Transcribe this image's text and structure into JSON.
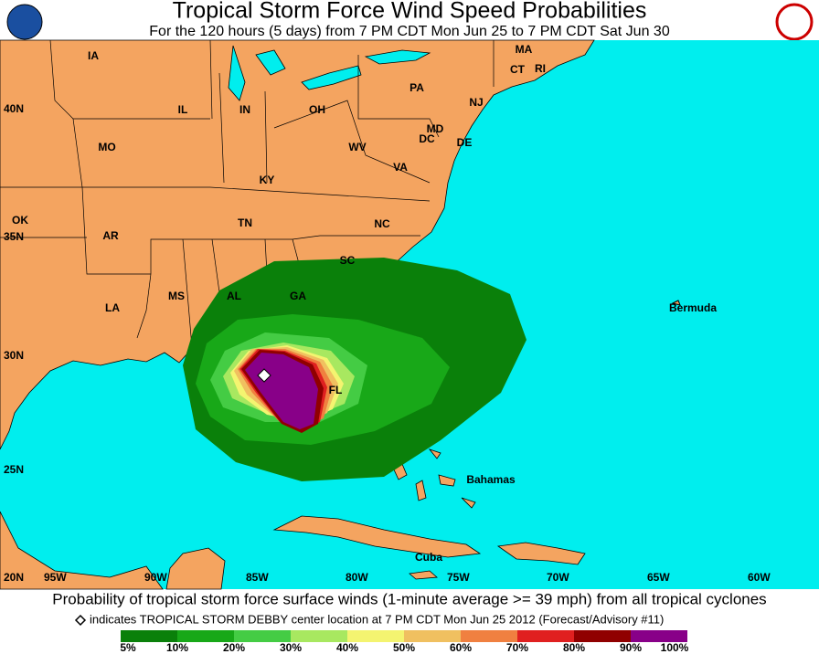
{
  "header": {
    "title": "Tropical Storm Force Wind Speed Probabilities",
    "subtitle": "For the 120 hours (5 days) from 7 PM CDT Mon Jun 25 to 7 PM CDT Sat Jun 30"
  },
  "map": {
    "state_labels": [
      "IA",
      "IL",
      "IN",
      "OH",
      "PA",
      "MA",
      "CT",
      "RI",
      "NJ",
      "MD",
      "DE",
      "DC",
      "WV",
      "VA",
      "MO",
      "KY",
      "OK",
      "AR",
      "TN",
      "NC",
      "SC",
      "LA",
      "MS",
      "AL",
      "GA",
      "FL"
    ],
    "place_labels": [
      "Bermuda",
      "Bahamas",
      "Cuba"
    ],
    "lat_labels": [
      "40N",
      "35N",
      "30N",
      "25N",
      "20N"
    ],
    "lon_labels": [
      "95W",
      "90W",
      "85W",
      "80W",
      "75W",
      "70W",
      "65W",
      "60W"
    ]
  },
  "footer": {
    "caption": "Probability of tropical storm force surface winds (1-minute average >= 39 mph) from all tropical cyclones",
    "note": "indicates TROPICAL STORM DEBBY center location at 7 PM CDT Mon Jun 25 2012 (Forecast/Advisory #11)"
  },
  "legend": {
    "labels": [
      "5%",
      "10%",
      "20%",
      "30%",
      "40%",
      "50%",
      "60%",
      "70%",
      "80%",
      "90%",
      "100%"
    ],
    "colors": [
      "#0a800a",
      "#18a818",
      "#44cc44",
      "#a8e860",
      "#f4f470",
      "#f0c060",
      "#f08040",
      "#e02020",
      "#900000",
      "#880088"
    ]
  }
}
